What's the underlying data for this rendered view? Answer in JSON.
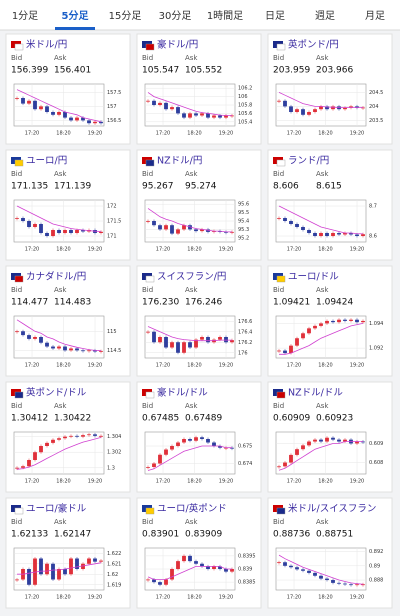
{
  "tabs": [
    "1分足",
    "5分足",
    "15分足",
    "30分足",
    "1時間足",
    "日足",
    "週足",
    "月足"
  ],
  "active_tab": 1,
  "bid_label": "Bid",
  "ask_label": "Ask",
  "xticks": [
    "17:20",
    "18:20",
    "19:20"
  ],
  "cards": [
    {
      "pair": "米ドル/円",
      "bid": "156.399",
      "ask": "156.401",
      "chart": {
        "type": "candlestick",
        "ylim": [
          156.3,
          157.8
        ],
        "yticks": [
          157.5,
          157,
          156.5
        ],
        "close": [
          157.3,
          157.1,
          157.2,
          156.9,
          157.0,
          156.8,
          156.7,
          156.8,
          156.6,
          156.5,
          156.6,
          156.5,
          156.4,
          156.45,
          156.4
        ],
        "ma": [
          157.6,
          157.5,
          157.4,
          157.3,
          157.2,
          157.1,
          157.0,
          156.9,
          156.8,
          156.75,
          156.7,
          156.6,
          156.55,
          156.5,
          156.45
        ]
      }
    },
    {
      "pair": "豪ドル/円",
      "bid": "105.547",
      "ask": "105.552",
      "chart": {
        "type": "candlestick",
        "ylim": [
          105.3,
          106.3
        ],
        "yticks": [
          106.2,
          106,
          105.8,
          105.6,
          105.4
        ],
        "close": [
          105.9,
          105.8,
          105.85,
          105.7,
          105.75,
          105.6,
          105.5,
          105.6,
          105.55,
          105.6,
          105.5,
          105.55,
          105.5,
          105.55,
          105.55
        ],
        "ma": [
          106.1,
          106.0,
          105.95,
          105.9,
          105.85,
          105.8,
          105.75,
          105.7,
          105.65,
          105.62,
          105.6,
          105.58,
          105.56,
          105.55,
          105.55
        ]
      }
    },
    {
      "pair": "英ポンド/円",
      "bid": "203.959",
      "ask": "203.966",
      "chart": {
        "type": "candlestick",
        "ylim": [
          203.3,
          204.8
        ],
        "yticks": [
          204.5,
          204,
          203.5
        ],
        "close": [
          204.2,
          204.0,
          203.8,
          203.9,
          203.7,
          203.8,
          203.9,
          204.0,
          203.9,
          204.0,
          203.9,
          203.95,
          204.0,
          203.95,
          203.96
        ],
        "ma": [
          204.5,
          204.4,
          204.3,
          204.2,
          204.1,
          204.05,
          204.0,
          204.0,
          203.98,
          203.97,
          203.96,
          203.96,
          203.96,
          203.96,
          203.96
        ]
      }
    },
    {
      "pair": "ユーロ/円",
      "bid": "171.135",
      "ask": "171.139",
      "chart": {
        "type": "candlestick",
        "ylim": [
          170.8,
          172.2
        ],
        "yticks": [
          172,
          171.5,
          171
        ],
        "close": [
          171.6,
          171.5,
          171.3,
          171.4,
          171.1,
          171.0,
          171.2,
          171.1,
          171.2,
          171.1,
          171.2,
          171.15,
          171.2,
          171.1,
          171.14
        ],
        "ma": [
          172.0,
          171.9,
          171.8,
          171.7,
          171.6,
          171.5,
          171.4,
          171.35,
          171.3,
          171.25,
          171.22,
          171.2,
          171.18,
          171.16,
          171.15
        ]
      }
    },
    {
      "pair": "NZドル/円",
      "bid": "95.267",
      "ask": "95.274",
      "chart": {
        "type": "candlestick",
        "ylim": [
          95.15,
          95.65
        ],
        "yticks": [
          95.6,
          95.5,
          95.4,
          95.3,
          95.2
        ],
        "close": [
          95.4,
          95.35,
          95.3,
          95.35,
          95.25,
          95.3,
          95.35,
          95.3,
          95.28,
          95.3,
          95.27,
          95.28,
          95.27,
          95.26,
          95.27
        ],
        "ma": [
          95.55,
          95.5,
          95.45,
          95.42,
          95.4,
          95.37,
          95.35,
          95.33,
          95.31,
          95.3,
          95.29,
          95.28,
          95.28,
          95.27,
          95.27
        ]
      }
    },
    {
      "pair": "ランド/円",
      "bid": "8.606",
      "ask": "8.615",
      "chart": {
        "type": "candlestick",
        "ylim": [
          8.58,
          8.72
        ],
        "yticks": [
          8.7,
          8.6
        ],
        "close": [
          8.66,
          8.65,
          8.64,
          8.63,
          8.62,
          8.61,
          8.6,
          8.61,
          8.6,
          8.61,
          8.605,
          8.61,
          8.605,
          8.6,
          8.606
        ],
        "ma": [
          8.7,
          8.69,
          8.68,
          8.67,
          8.66,
          8.65,
          8.64,
          8.63,
          8.625,
          8.62,
          8.615,
          8.61,
          8.61,
          8.608,
          8.607
        ]
      }
    },
    {
      "pair": "カナダドル/円",
      "bid": "114.477",
      "ask": "114.483",
      "chart": {
        "type": "candlestick",
        "ylim": [
          114.3,
          115.4
        ],
        "yticks": [
          115,
          114.5
        ],
        "close": [
          115.0,
          114.9,
          114.8,
          114.85,
          114.7,
          114.6,
          114.55,
          114.6,
          114.5,
          114.55,
          114.5,
          114.48,
          114.5,
          114.47,
          114.48
        ],
        "ma": [
          115.3,
          115.2,
          115.1,
          115.0,
          114.95,
          114.85,
          114.8,
          114.72,
          114.66,
          114.62,
          114.58,
          114.55,
          114.52,
          114.5,
          114.49
        ]
      }
    },
    {
      "pair": "スイスフラン/円",
      "bid": "176.230",
      "ask": "176.246",
      "chart": {
        "type": "candlestick",
        "ylim": [
          175.9,
          176.7
        ],
        "yticks": [
          176.6,
          176.4,
          176.2,
          176
        ],
        "close": [
          176.4,
          176.2,
          176.3,
          176.1,
          176.2,
          176.0,
          176.2,
          176.1,
          176.25,
          176.3,
          176.2,
          176.25,
          176.3,
          176.2,
          176.24
        ],
        "ma": [
          176.5,
          176.45,
          176.4,
          176.35,
          176.3,
          176.27,
          176.25,
          176.24,
          176.23,
          176.23,
          176.23,
          176.23,
          176.24,
          176.24,
          176.24
        ]
      }
    },
    {
      "pair": "ユーロ/ドル",
      "bid": "1.09421",
      "ask": "1.09424",
      "chart": {
        "type": "candlestick",
        "ylim": [
          1.0912,
          1.0946
        ],
        "yticks": [
          1.094,
          1.092
        ],
        "close": [
          1.0918,
          1.0916,
          1.0922,
          1.0928,
          1.0932,
          1.0936,
          1.0938,
          1.094,
          1.0942,
          1.0941,
          1.0943,
          1.0942,
          1.0943,
          1.0941,
          1.0942
        ],
        "ma": [
          1.0915,
          1.0915,
          1.0916,
          1.0918,
          1.092,
          1.0922,
          1.0925,
          1.0928,
          1.093,
          1.0932,
          1.0934,
          1.0936,
          1.0938,
          1.0939,
          1.094
        ]
      }
    },
    {
      "pair": "英ポンド/ドル",
      "bid": "1.30412",
      "ask": "1.30422",
      "chart": {
        "type": "candlestick",
        "ylim": [
          1.2992,
          1.3046
        ],
        "yticks": [
          1.304,
          1.302,
          1.3
        ],
        "close": [
          1.3,
          1.3002,
          1.301,
          1.302,
          1.3028,
          1.3032,
          1.3036,
          1.3038,
          1.304,
          1.3041,
          1.304,
          1.3042,
          1.3043,
          1.3041,
          1.3041
        ],
        "ma": [
          1.2998,
          1.2999,
          1.3001,
          1.3004,
          1.3008,
          1.3012,
          1.3016,
          1.302,
          1.3024,
          1.3027,
          1.303,
          1.3033,
          1.3035,
          1.3037,
          1.3039
        ]
      }
    },
    {
      "pair": "豪ドル/ドル",
      "bid": "0.67485",
      "ask": "0.67489",
      "chart": {
        "type": "candlestick",
        "ylim": [
          0.6734,
          0.6758
        ],
        "yticks": [
          0.675,
          0.674
        ],
        "close": [
          0.6738,
          0.674,
          0.6745,
          0.6748,
          0.675,
          0.6752,
          0.6754,
          0.6753,
          0.6755,
          0.6754,
          0.6752,
          0.675,
          0.6749,
          0.6749,
          0.67485
        ],
        "ma": [
          0.6736,
          0.6737,
          0.6739,
          0.6741,
          0.6743,
          0.6745,
          0.6747,
          0.6748,
          0.6749,
          0.675,
          0.675,
          0.675,
          0.675,
          0.6749,
          0.6749
        ]
      }
    },
    {
      "pair": "NZドル/ドル",
      "bid": "0.60909",
      "ask": "0.60923",
      "chart": {
        "type": "candlestick",
        "ylim": [
          0.6074,
          0.6096
        ],
        "yticks": [
          0.609,
          0.608
        ],
        "close": [
          0.6078,
          0.608,
          0.6084,
          0.6087,
          0.6089,
          0.6091,
          0.6092,
          0.6091,
          0.6093,
          0.6092,
          0.6091,
          0.6092,
          0.609,
          0.6091,
          0.60909
        ],
        "ma": [
          0.6076,
          0.6077,
          0.6079,
          0.6081,
          0.6083,
          0.6085,
          0.6087,
          0.6088,
          0.6089,
          0.609,
          0.609,
          0.6091,
          0.6091,
          0.6091,
          0.6091
        ]
      }
    },
    {
      "pair": "ユーロ/豪ドル",
      "bid": "1.62133",
      "ask": "1.62147",
      "chart": {
        "type": "candlestick",
        "ylim": [
          1.6185,
          1.6225
        ],
        "yticks": [
          1.622,
          1.621,
          1.62,
          1.619
        ],
        "close": [
          1.6195,
          1.6205,
          1.619,
          1.6215,
          1.62,
          1.621,
          1.6195,
          1.6205,
          1.62,
          1.6215,
          1.6205,
          1.621,
          1.6215,
          1.6212,
          1.6213
        ],
        "ma": [
          1.62,
          1.62,
          1.6201,
          1.6202,
          1.6203,
          1.6203,
          1.6204,
          1.6204,
          1.6205,
          1.6206,
          1.6207,
          1.6208,
          1.6209,
          1.621,
          1.6211
        ]
      }
    },
    {
      "pair": "ユーロ/英ポンド",
      "bid": "0.83901",
      "ask": "0.83909",
      "chart": {
        "type": "candlestick",
        "ylim": [
          0.8382,
          0.8398
        ],
        "yticks": [
          0.8395,
          0.839,
          0.8385
        ],
        "close": [
          0.8386,
          0.8385,
          0.8384,
          0.8386,
          0.839,
          0.8393,
          0.8395,
          0.8393,
          0.8392,
          0.8391,
          0.839,
          0.8391,
          0.839,
          0.8389,
          0.839
        ],
        "ma": [
          0.8387,
          0.8386,
          0.8386,
          0.8386,
          0.8387,
          0.8388,
          0.8389,
          0.839,
          0.8391,
          0.8391,
          0.8391,
          0.8391,
          0.8391,
          0.839,
          0.839
        ]
      }
    },
    {
      "pair": "米ドル/スイスフラン",
      "bid": "0.88736",
      "ask": "0.88751",
      "chart": {
        "type": "candlestick",
        "ylim": [
          0.8866,
          0.8925
        ],
        "yticks": [
          0.892,
          0.89,
          0.888
        ],
        "close": [
          0.8905,
          0.89,
          0.8898,
          0.8895,
          0.8893,
          0.889,
          0.8886,
          0.8882,
          0.888,
          0.8876,
          0.8875,
          0.8874,
          0.8873,
          0.8874,
          0.8874
        ],
        "ma": [
          0.8915,
          0.891,
          0.8906,
          0.8902,
          0.8898,
          0.8895,
          0.8892,
          0.8889,
          0.8886,
          0.8883,
          0.888,
          0.8878,
          0.8876,
          0.8875,
          0.8874
        ]
      }
    }
  ]
}
